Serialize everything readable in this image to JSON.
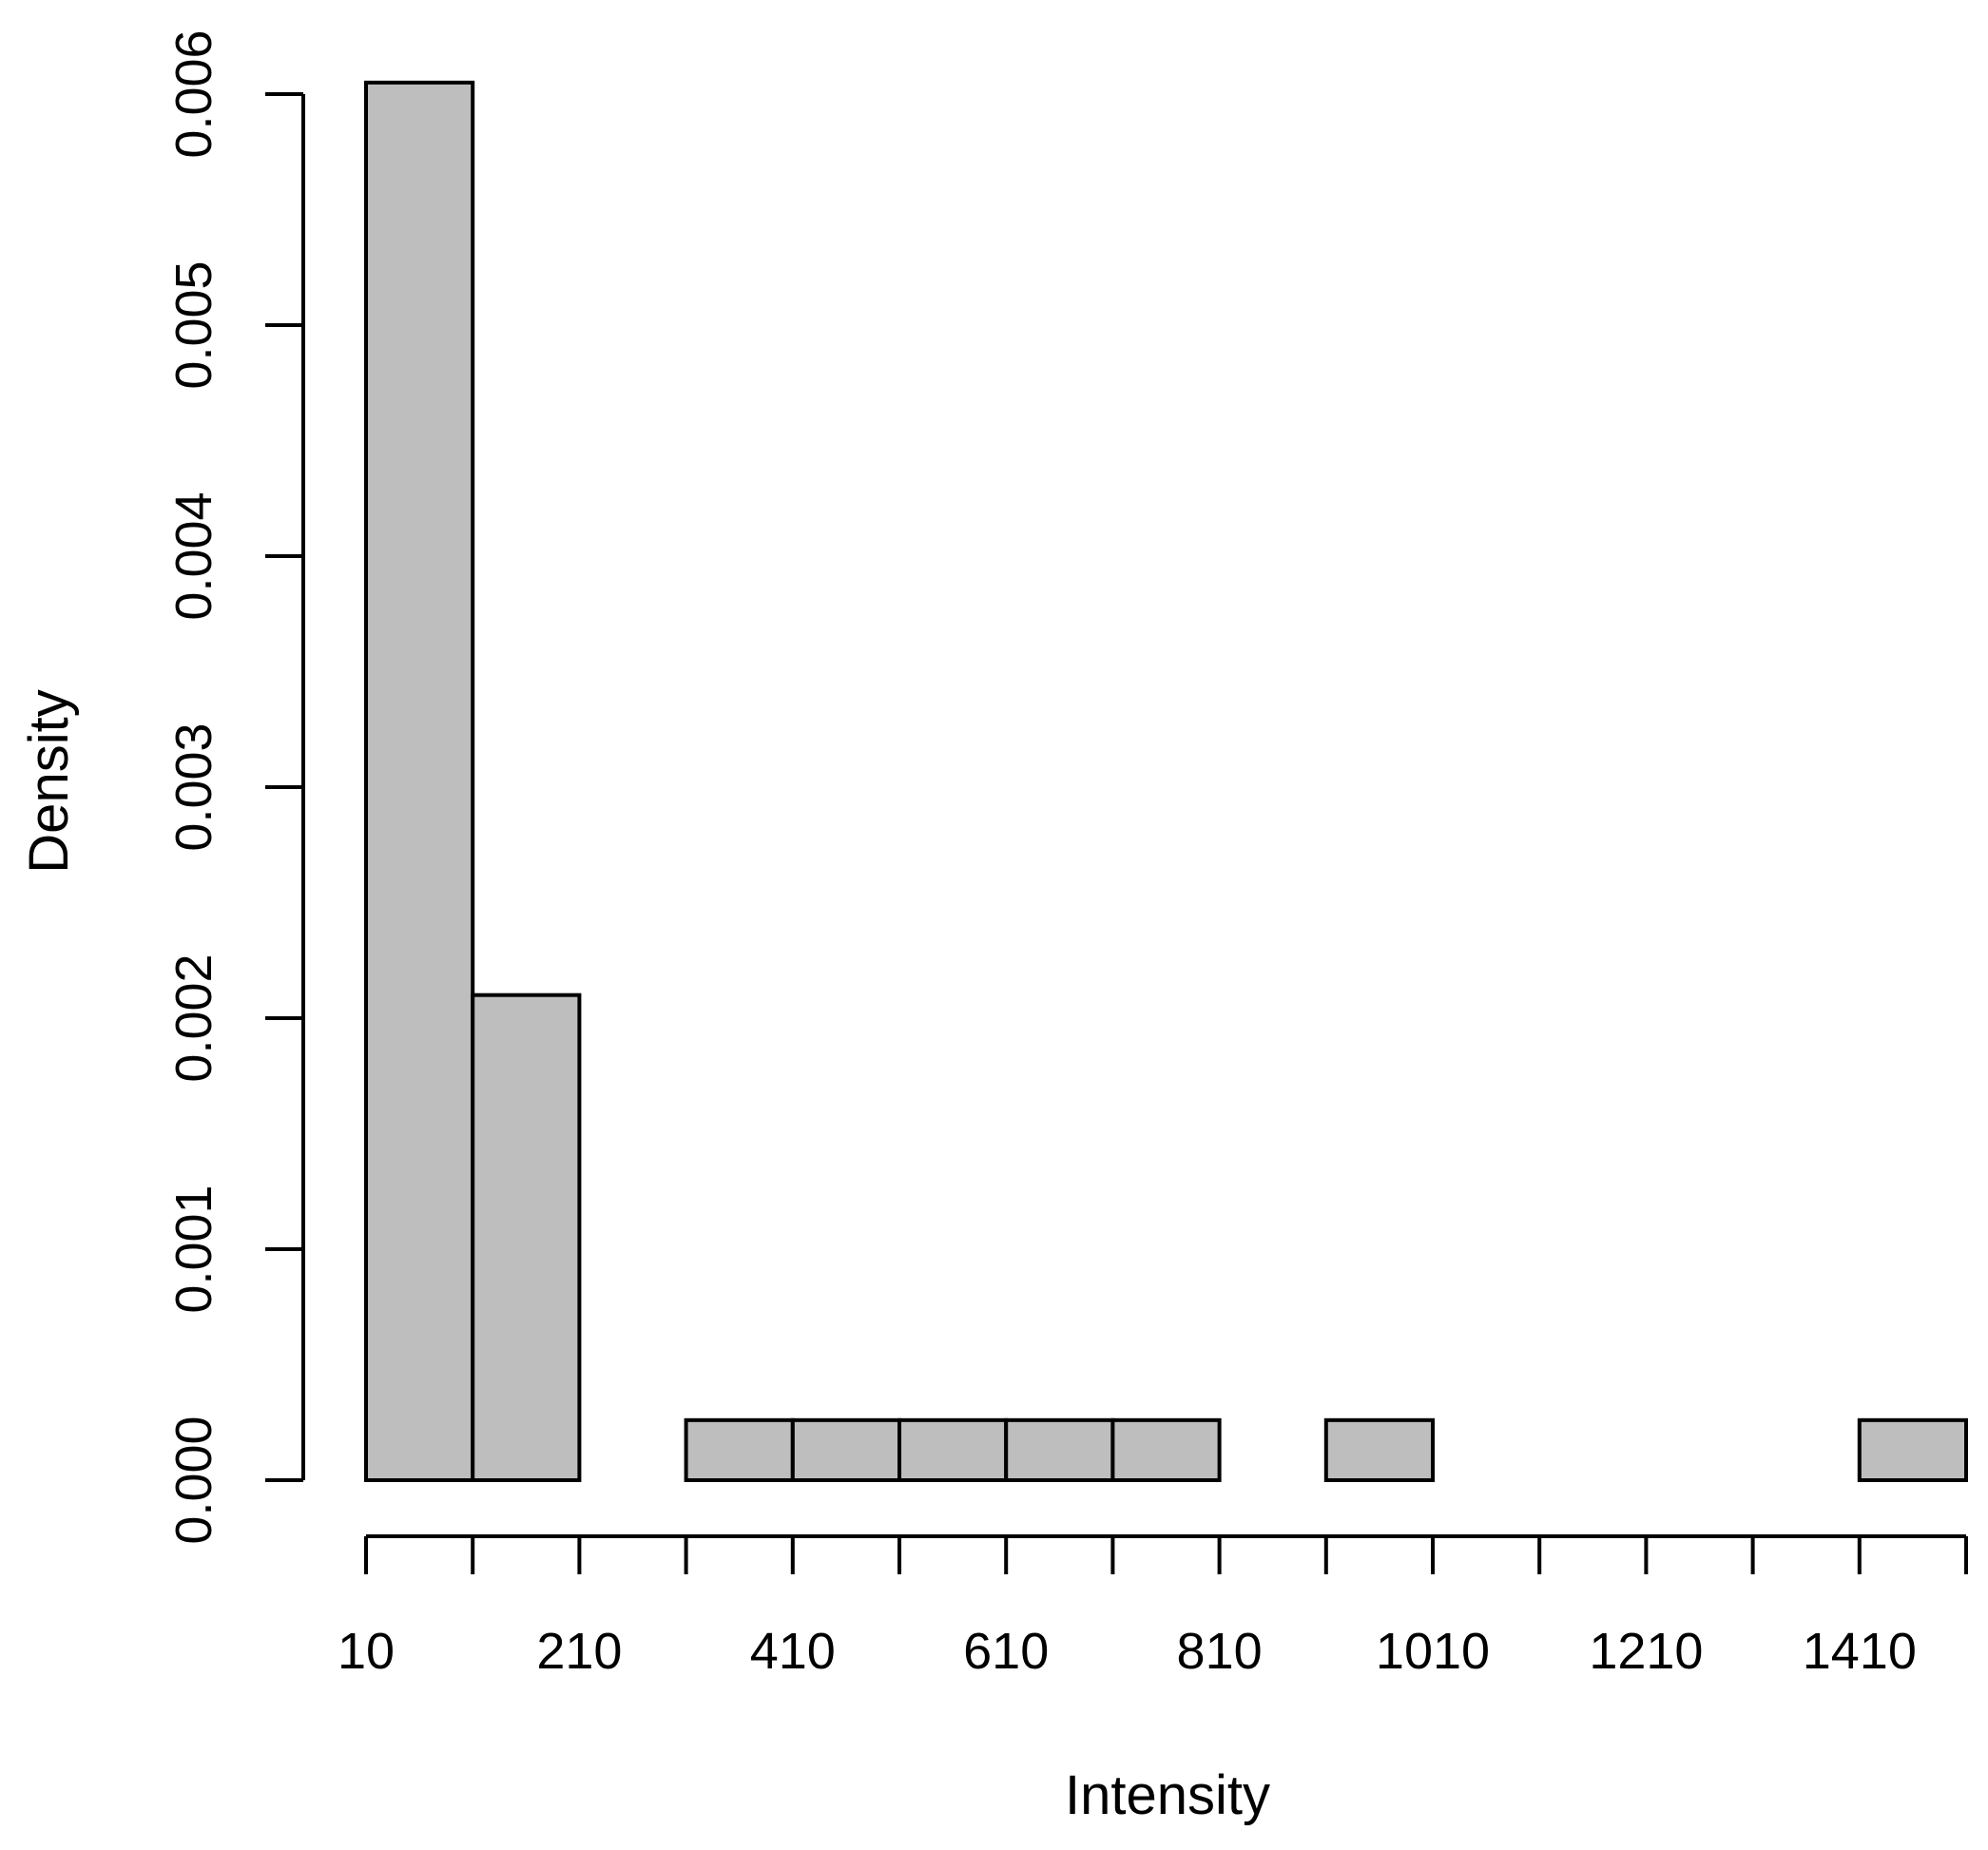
{
  "chart_data": {
    "type": "bar",
    "title": "",
    "xlabel": "Intensity",
    "ylabel": "Density",
    "bin_edges": [
      10,
      110,
      210,
      310,
      410,
      510,
      610,
      710,
      810,
      910,
      1010,
      1110,
      1210,
      1310,
      1410,
      1510
    ],
    "values": [
      0.00605,
      0.0021,
      0.0,
      0.00026,
      0.00026,
      0.00026,
      0.00026,
      0.00026,
      0.0,
      0.00026,
      0.0,
      0.0,
      0.0,
      0.0,
      0.00026
    ],
    "xlim": [
      10,
      1510
    ],
    "ylim": [
      0,
      0.006
    ],
    "x_ticks": [
      10,
      110,
      210,
      310,
      410,
      510,
      610,
      710,
      810,
      910,
      1010,
      1110,
      1210,
      1310,
      1410,
      1510
    ],
    "x_tick_labels": [
      {
        "value": 10,
        "label": "10"
      },
      {
        "value": 210,
        "label": "210"
      },
      {
        "value": 410,
        "label": "410"
      },
      {
        "value": 610,
        "label": "610"
      },
      {
        "value": 810,
        "label": "810"
      },
      {
        "value": 1010,
        "label": "1010"
      },
      {
        "value": 1210,
        "label": "1210"
      },
      {
        "value": 1410,
        "label": "1410"
      }
    ],
    "y_ticks": [
      {
        "value": 0.0,
        "label": "0.000"
      },
      {
        "value": 0.001,
        "label": "0.001"
      },
      {
        "value": 0.002,
        "label": "0.002"
      },
      {
        "value": 0.003,
        "label": "0.003"
      },
      {
        "value": 0.004,
        "label": "0.004"
      },
      {
        "value": 0.005,
        "label": "0.005"
      },
      {
        "value": 0.006,
        "label": "0.006"
      }
    ],
    "bar_fill": "#bebebe",
    "bar_stroke": "#000000",
    "grid": false
  }
}
